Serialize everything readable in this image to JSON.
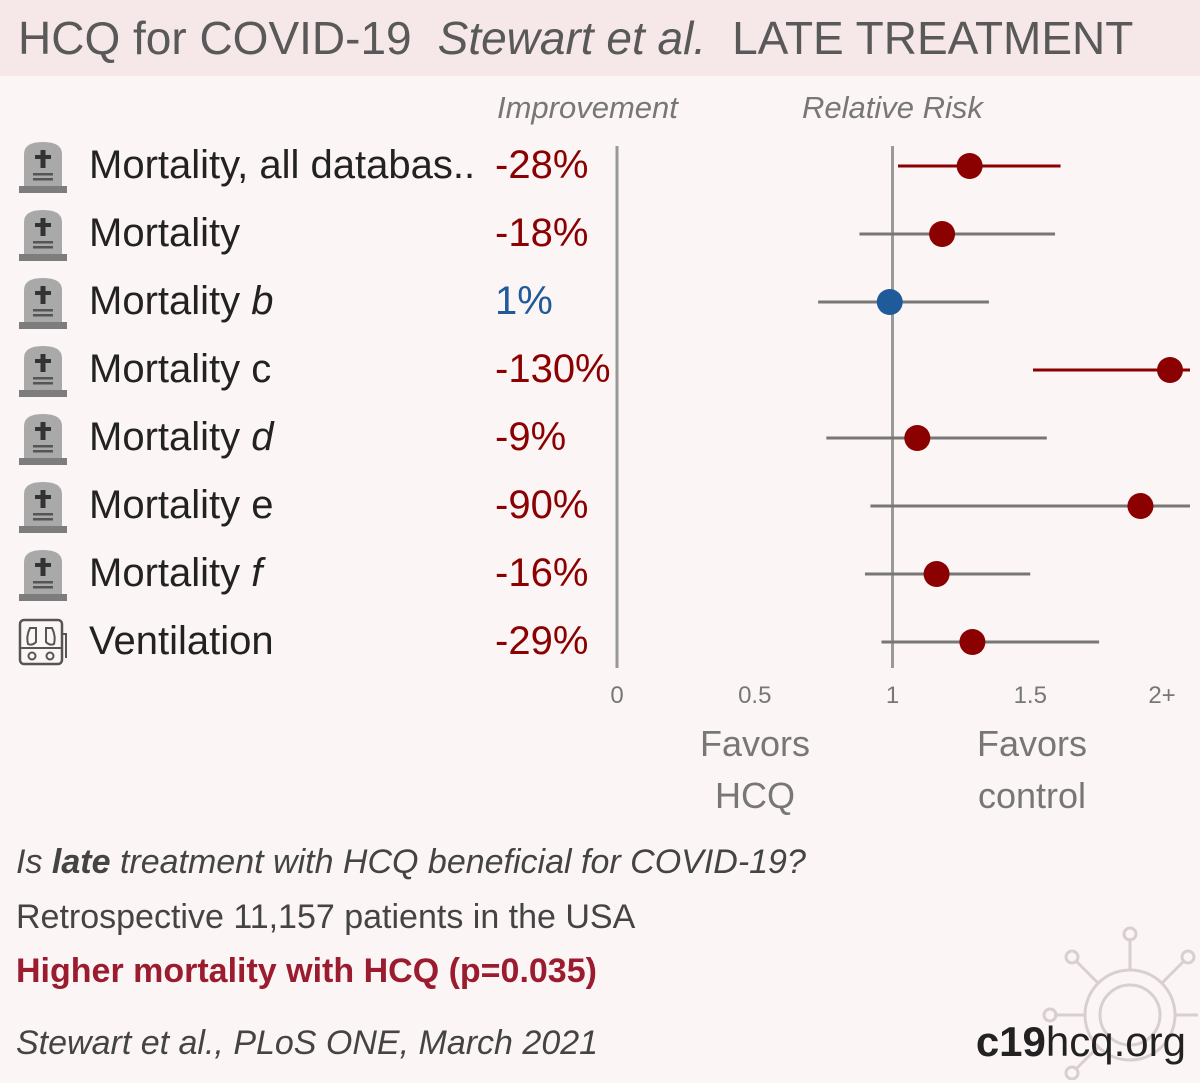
{
  "header": {
    "drug_title": "HCQ for COVID-19",
    "study": "Stewart et al.",
    "stage": "LATE TREATMENT"
  },
  "columns": {
    "improvement": "Improvement",
    "relative_risk": "Relative Risk"
  },
  "rows": [
    {
      "icon": "tombstone-icon",
      "label": "Mortality, all databas..",
      "label_suffix": "",
      "improvement": "-28%",
      "color": "#8b0000"
    },
    {
      "icon": "tombstone-icon",
      "label": "Mortality",
      "label_suffix": "",
      "improvement": "-18%",
      "color": "#8b0000"
    },
    {
      "icon": "tombstone-icon",
      "label": "Mortality ",
      "label_suffix": "b",
      "improvement": "1%",
      "color": "#1f5a9a"
    },
    {
      "icon": "tombstone-icon",
      "label": "Mortality c",
      "label_suffix": "",
      "improvement": "-130%",
      "color": "#8b0000"
    },
    {
      "icon": "tombstone-icon",
      "label": "Mortality ",
      "label_suffix": "d",
      "improvement": "-9%",
      "color": "#8b0000"
    },
    {
      "icon": "tombstone-icon",
      "label": "Mortality e",
      "label_suffix": "",
      "improvement": "-90%",
      "color": "#8b0000"
    },
    {
      "icon": "tombstone-icon",
      "label": "Mortality ",
      "label_suffix": "f",
      "improvement": "-16%",
      "color": "#8b0000"
    },
    {
      "icon": "ventilator-icon",
      "label": "Ventilation",
      "label_suffix": "",
      "improvement": "-29%",
      "color": "#8b0000"
    }
  ],
  "chart_data": {
    "type": "forest",
    "xlabel": "Relative Risk",
    "xlim": [
      0,
      2
    ],
    "x_ticks": [
      "0",
      "0.5",
      "1",
      "1.5",
      "2+"
    ],
    "x_tick_values": [
      0,
      0.5,
      1,
      1.5,
      2
    ],
    "null_line": 1,
    "favors_left": [
      "Favors",
      "HCQ"
    ],
    "favors_right": [
      "Favors",
      "control"
    ],
    "series": [
      {
        "outcome": "Mortality, all databas..",
        "rr": 1.28,
        "ci": [
          1.02,
          1.61
        ],
        "ci_color": "#8b0000"
      },
      {
        "outcome": "Mortality",
        "rr": 1.18,
        "ci": [
          0.88,
          1.59
        ],
        "ci_color": "#777777"
      },
      {
        "outcome": "Mortality b",
        "rr": 0.99,
        "ci": [
          0.73,
          1.35
        ],
        "ci_color": "#777777"
      },
      {
        "outcome": "Mortality c",
        "rr": 2.3,
        "ci": [
          1.51,
          3.5
        ],
        "ci_color": "#8b0000"
      },
      {
        "outcome": "Mortality d",
        "rr": 1.09,
        "ci": [
          0.76,
          1.56
        ],
        "ci_color": "#777777"
      },
      {
        "outcome": "Mortality e",
        "rr": 1.9,
        "ci": [
          0.92,
          3.9
        ],
        "ci_color": "#777777"
      },
      {
        "outcome": "Mortality f",
        "rr": 1.16,
        "ci": [
          0.9,
          1.5
        ],
        "ci_color": "#777777"
      },
      {
        "outcome": "Ventilation",
        "rr": 1.29,
        "ci": [
          0.96,
          1.75
        ],
        "ci_color": "#777777"
      }
    ]
  },
  "footer": {
    "question_pre": "Is ",
    "question_bold": "late",
    "question_post": " treatment with HCQ beneficial for COVID-19?",
    "design": "Retrospective 11,157 patients in the USA",
    "result": "Higher mortality with HCQ (p=0.035)",
    "citation": "Stewart et al., PLoS ONE, March 2021",
    "brand_bold": "c19",
    "brand_rest": "hcq.org"
  },
  "colors": {
    "harm": "#8b0000",
    "neutral": "#1f5a9a",
    "axis": "#999999",
    "result": "#9b1c2e"
  }
}
